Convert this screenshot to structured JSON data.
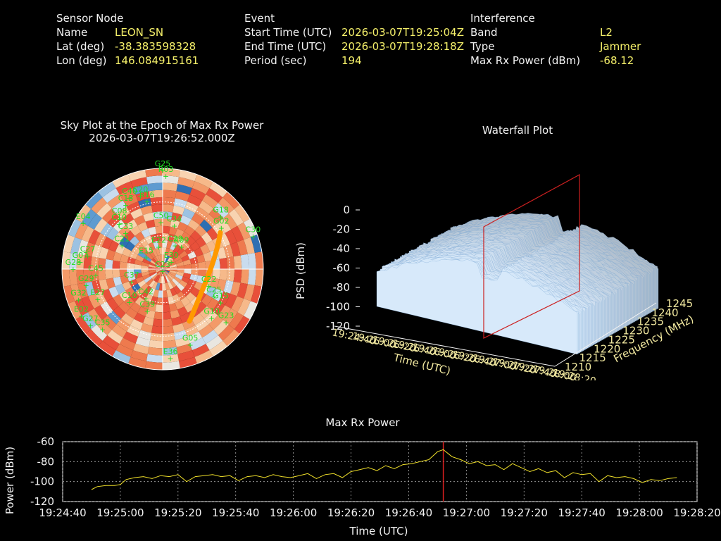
{
  "sensor": {
    "heading": "Sensor Node",
    "name_label": "Name",
    "name": "LEON_SN",
    "lat_label": "Lat (deg)",
    "lat": "-38.383598328",
    "lon_label": "Lon (deg)",
    "lon": "146.084915161"
  },
  "event": {
    "heading": "Event",
    "start_label": "Start Time (UTC)",
    "start": "2026-03-07T19:25:04Z",
    "end_label": "End Time (UTC)",
    "end": "2026-03-07T19:28:18Z",
    "period_label": "Period (sec)",
    "period": "194"
  },
  "interference": {
    "heading": "Interference",
    "band_label": "Band",
    "band": "L2",
    "type_label": "Type",
    "type": "Jammer",
    "power_label": "Max Rx Power (dBm)",
    "power": "-68.12"
  },
  "skyplot": {
    "title": "Sky Plot at the Epoch of Max Rx Power",
    "epoch": "2026-03-07T19:26:52.000Z",
    "satellite_color": "#22dd22",
    "satellites": [
      {
        "id": "G25",
        "az": 0,
        "el": 88
      },
      {
        "id": "R03",
        "az": 2,
        "el": 83
      },
      {
        "id": "C40",
        "az": 335,
        "el": 70
      },
      {
        "id": "C20",
        "az": 343,
        "el": 68
      },
      {
        "id": "R16",
        "az": 347,
        "el": 62
      },
      {
        "id": "C13",
        "az": 330,
        "el": 66
      },
      {
        "id": "C08",
        "az": 320,
        "el": 60
      },
      {
        "id": "C10",
        "az": 316,
        "el": 56
      },
      {
        "id": "C50",
        "az": 358,
        "el": 42
      },
      {
        "id": "E04",
        "az": 300,
        "el": 82
      },
      {
        "id": "C33",
        "az": 314,
        "el": 46
      },
      {
        "id": "C21",
        "az": 300,
        "el": 42
      },
      {
        "id": "C34",
        "az": 15,
        "el": 40
      },
      {
        "id": "G18",
        "az": 48,
        "el": 70
      },
      {
        "id": "G02",
        "az": 55,
        "el": 64
      },
      {
        "id": "C30",
        "az": 70,
        "el": 86
      },
      {
        "id": "E22",
        "az": 350,
        "el": 20
      },
      {
        "id": "C29",
        "az": 28,
        "el": 24
      },
      {
        "id": "R09",
        "az": 40,
        "el": 26
      },
      {
        "id": "E15",
        "az": 305,
        "el": 18
      },
      {
        "id": "E30",
        "az": 50,
        "el": 10
      },
      {
        "id": "C23",
        "az": 180,
        "el": 2
      },
      {
        "id": "G28",
        "az": 270,
        "el": 80
      },
      {
        "id": "G07",
        "az": 275,
        "el": 74
      },
      {
        "id": "C27",
        "az": 280,
        "el": 68
      },
      {
        "id": "C45",
        "az": 265,
        "el": 60
      },
      {
        "id": "C37",
        "az": 248,
        "el": 30
      },
      {
        "id": "C22",
        "az": 110,
        "el": 44
      },
      {
        "id": "C25",
        "az": 118,
        "el": 52
      },
      {
        "id": "G15",
        "az": 120,
        "el": 60
      },
      {
        "id": "G10",
        "az": 135,
        "el": 62
      },
      {
        "id": "G23",
        "az": 130,
        "el": 74
      },
      {
        "id": "C10b",
        "label": "C10",
        "az": 225,
        "el": 42
      },
      {
        "id": "C39",
        "az": 200,
        "el": 40
      },
      {
        "id": "E27",
        "az": 245,
        "el": 64
      },
      {
        "id": "C35",
        "az": 225,
        "el": 76
      },
      {
        "id": "G32",
        "az": 250,
        "el": 80
      },
      {
        "id": "E02",
        "az": 240,
        "el": 84
      },
      {
        "id": "G27",
        "az": 232,
        "el": 82
      },
      {
        "id": "G05",
        "az": 160,
        "el": 72
      },
      {
        "id": "E36",
        "az": 175,
        "el": 80
      },
      {
        "id": "G29",
        "az": 258,
        "el": 70
      },
      {
        "id": "C42",
        "az": 210,
        "el": 30
      }
    ]
  },
  "waterfall": {
    "title": "Waterfall Plot",
    "zlabel": "PSD (dBm)",
    "xlabel": "Time (UTC)",
    "ylabel": "Frequency (MHz)",
    "z_ticks": [
      "0",
      "-20",
      "-40",
      "-60",
      "-80",
      "-100",
      "-120"
    ],
    "time_ticks": [
      "19:24:40",
      "19:25:00",
      "19:25:20",
      "19:25:40",
      "19:26:00",
      "19:26:20",
      "19:26:40",
      "19:27:00",
      "19:27:20",
      "19:27:40",
      "19:28:00",
      "19:28:20"
    ],
    "freq_ticks": [
      "1210",
      "1215",
      "1220",
      "1225",
      "1230",
      "1235",
      "1240",
      "1245"
    ]
  },
  "chart_data": {
    "type": "line",
    "title": "Max Rx Power",
    "xlabel": "Time (UTC)",
    "ylabel": "Power (dBm)",
    "ylim": [
      -120,
      -60
    ],
    "xlim": [
      "19:24:40",
      "19:28:20"
    ],
    "yticks": [
      "-60",
      "-80",
      "-100",
      "-120"
    ],
    "xticks": [
      "19:24:40",
      "19:25:00",
      "19:25:20",
      "19:25:40",
      "19:26:00",
      "19:26:20",
      "19:26:40",
      "19:27:00",
      "19:27:20",
      "19:27:40",
      "19:28:00",
      "19:28:20"
    ],
    "grid": true,
    "line_color": "#f0e02a",
    "marker_color": "#dd2020",
    "max_marker_time": "19:26:52",
    "series": [
      {
        "x": [
          "19:24:50",
          "19:24:52",
          "19:24:55",
          "19:24:58",
          "19:25:00",
          "19:25:02",
          "19:25:05",
          "19:25:08",
          "19:25:11",
          "19:25:14",
          "19:25:17",
          "19:25:20",
          "19:25:23",
          "19:25:26",
          "19:25:29",
          "19:25:32",
          "19:25:35",
          "19:25:38",
          "19:25:41",
          "19:25:44",
          "19:25:47",
          "19:25:50",
          "19:25:53",
          "19:25:56",
          "19:25:59",
          "19:26:02",
          "19:26:05",
          "19:26:08",
          "19:26:11",
          "19:26:14",
          "19:26:17",
          "19:26:20",
          "19:26:23",
          "19:26:26",
          "19:26:29",
          "19:26:32",
          "19:26:35",
          "19:26:38",
          "19:26:41",
          "19:26:44",
          "19:26:47",
          "19:26:50",
          "19:26:52",
          "19:26:55",
          "19:26:58",
          "19:27:01",
          "19:27:04",
          "19:27:07",
          "19:27:10",
          "19:27:13",
          "19:27:16",
          "19:27:19",
          "19:27:22",
          "19:27:25",
          "19:27:28",
          "19:27:31",
          "19:27:34",
          "19:27:37",
          "19:27:40",
          "19:27:43",
          "19:27:46",
          "19:27:49",
          "19:27:52",
          "19:27:55",
          "19:27:58",
          "19:28:01",
          "19:28:04",
          "19:28:07",
          "19:28:10",
          "19:28:13"
        ],
        "y": [
          -108,
          -105,
          -104,
          -104,
          -103,
          -98,
          -96,
          -95,
          -97,
          -94,
          -95,
          -93,
          -100,
          -95,
          -94,
          -93,
          -95,
          -94,
          -99,
          -95,
          -94,
          -96,
          -93,
          -95,
          -96,
          -94,
          -92,
          -97,
          -93,
          -92,
          -96,
          -90,
          -88,
          -86,
          -89,
          -84,
          -87,
          -83,
          -82,
          -80,
          -78,
          -70,
          -68,
          -75,
          -78,
          -82,
          -80,
          -84,
          -83,
          -88,
          -82,
          -86,
          -90,
          -87,
          -91,
          -89,
          -96,
          -91,
          -93,
          -92,
          -100,
          -94,
          -96,
          -95,
          -97,
          -101,
          -98,
          -99,
          -97,
          -96
        ]
      }
    ]
  }
}
